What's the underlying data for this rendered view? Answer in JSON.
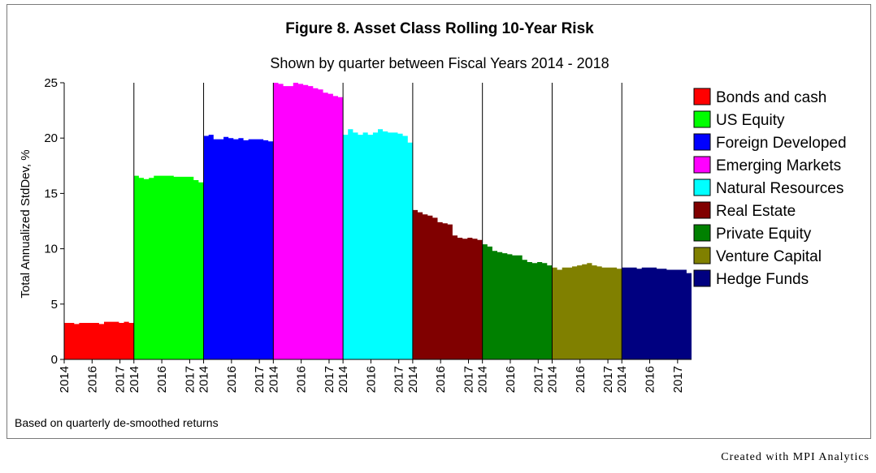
{
  "chart_data": {
    "type": "area",
    "title": "Figure 8. Asset Class Rolling 10-Year Risk",
    "subtitle": "Shown by quarter between Fiscal Years 2014 - 2018",
    "ylabel": "Total Annualized StdDev, %",
    "ylim": [
      0,
      25
    ],
    "yticks": [
      "0",
      "5",
      "10",
      "15",
      "20",
      "25"
    ],
    "xticks": [
      "2014",
      "2016",
      "2017"
    ],
    "legend_position": "right",
    "footnote": "Based on quarterly de-smoothed returns",
    "series": [
      {
        "name": "Bonds and cash",
        "color": "#ff0000",
        "values": [
          3.3,
          3.3,
          3.2,
          3.3,
          3.3,
          3.3,
          3.3,
          3.2,
          3.4,
          3.4,
          3.4,
          3.3,
          3.4,
          3.3
        ]
      },
      {
        "name": "US Equity",
        "color": "#00ff00",
        "values": [
          16.6,
          16.4,
          16.3,
          16.4,
          16.6,
          16.6,
          16.6,
          16.6,
          16.5,
          16.5,
          16.5,
          16.5,
          16.2,
          16.0
        ]
      },
      {
        "name": "Foreign Developed",
        "color": "#0000ff",
        "values": [
          20.2,
          20.3,
          19.9,
          19.9,
          20.1,
          20.0,
          19.9,
          20.0,
          19.8,
          19.9,
          19.9,
          19.9,
          19.8,
          19.7
        ]
      },
      {
        "name": "Emerging Markets",
        "color": "#ff00ff",
        "values": [
          25.0,
          24.9,
          24.7,
          24.7,
          25.0,
          24.9,
          24.8,
          24.7,
          24.5,
          24.4,
          24.1,
          24.0,
          23.8,
          23.7
        ]
      },
      {
        "name": "Natural Resources",
        "color": "#00ffff",
        "values": [
          20.3,
          20.8,
          20.5,
          20.3,
          20.5,
          20.3,
          20.5,
          20.8,
          20.6,
          20.5,
          20.5,
          20.4,
          20.2,
          19.6
        ]
      },
      {
        "name": "Real Estate",
        "color": "#800000",
        "values": [
          13.5,
          13.3,
          13.1,
          13.0,
          12.8,
          12.4,
          12.3,
          12.2,
          11.2,
          11.0,
          10.9,
          11.0,
          10.9,
          10.8
        ]
      },
      {
        "name": "Private Equity",
        "color": "#008000",
        "values": [
          10.4,
          10.2,
          9.8,
          9.7,
          9.6,
          9.5,
          9.4,
          9.4,
          9.0,
          8.8,
          8.7,
          8.8,
          8.7,
          8.5
        ]
      },
      {
        "name": "Venture Capital",
        "color": "#808000",
        "values": [
          8.3,
          8.1,
          8.3,
          8.3,
          8.4,
          8.5,
          8.6,
          8.7,
          8.5,
          8.4,
          8.3,
          8.3,
          8.3,
          8.2
        ]
      },
      {
        "name": "Hedge Funds",
        "color": "#000080",
        "values": [
          8.3,
          8.3,
          8.3,
          8.2,
          8.3,
          8.3,
          8.3,
          8.2,
          8.2,
          8.1,
          8.1,
          8.1,
          8.1,
          7.8
        ]
      }
    ]
  },
  "credit": "Created with MPI Analytics"
}
